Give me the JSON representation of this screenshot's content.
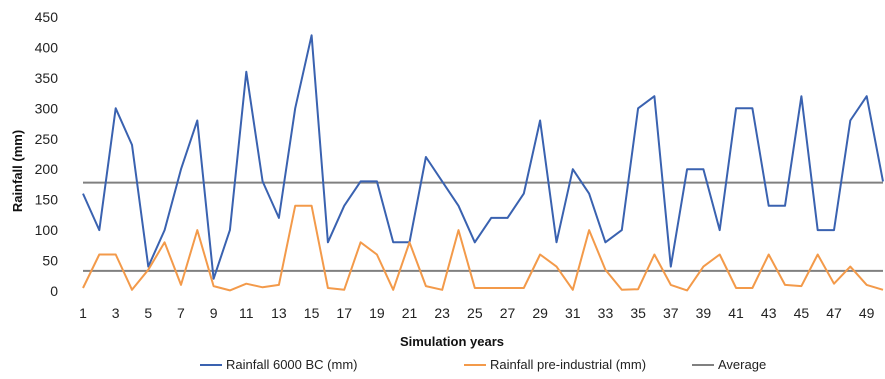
{
  "chart_data": {
    "type": "line",
    "xlabel": "Simulation years",
    "ylabel": "Rainfall (mm)",
    "ylim": [
      0,
      450
    ],
    "yticks": [
      0,
      50,
      100,
      150,
      200,
      250,
      300,
      350,
      400,
      450
    ],
    "xlim": [
      1,
      50
    ],
    "xticks": [
      1,
      3,
      5,
      7,
      9,
      11,
      13,
      15,
      17,
      19,
      21,
      23,
      25,
      27,
      29,
      31,
      33,
      35,
      37,
      39,
      41,
      43,
      45,
      47,
      49
    ],
    "grid": false,
    "legend_position": "bottom",
    "x": [
      1,
      2,
      3,
      4,
      5,
      6,
      7,
      8,
      9,
      10,
      11,
      12,
      13,
      14,
      15,
      16,
      17,
      18,
      19,
      20,
      21,
      22,
      23,
      24,
      25,
      26,
      27,
      28,
      29,
      30,
      31,
      32,
      33,
      34,
      35,
      36,
      37,
      38,
      39,
      40,
      41,
      42,
      43,
      44,
      45,
      46,
      47,
      48,
      49,
      50
    ],
    "series": [
      {
        "name": "Rainfall 6000 BC (mm)",
        "color": "#3a62b0",
        "values": [
          160,
          100,
          300,
          240,
          40,
          100,
          200,
          280,
          20,
          100,
          360,
          180,
          120,
          300,
          420,
          80,
          140,
          180,
          180,
          80,
          80,
          220,
          180,
          140,
          80,
          120,
          120,
          160,
          280,
          80,
          200,
          160,
          80,
          100,
          300,
          320,
          40,
          200,
          200,
          100,
          300,
          300,
          140,
          140,
          320,
          100,
          100,
          280,
          320,
          180
        ]
      },
      {
        "name": "Rainfall pre-industrial (mm)",
        "color": "#f39a4a",
        "values": [
          5,
          60,
          60,
          2,
          35,
          80,
          10,
          100,
          8,
          1,
          12,
          6,
          10,
          140,
          140,
          5,
          2,
          80,
          60,
          2,
          80,
          8,
          2,
          100,
          5,
          5,
          5,
          5,
          60,
          40,
          2,
          100,
          35,
          2,
          3,
          60,
          10,
          1,
          40,
          60,
          5,
          5,
          60,
          10,
          8,
          60,
          12,
          40,
          10,
          2
        ]
      },
      {
        "name": "Average",
        "color": "#808080",
        "constants": [
          178,
          33
        ]
      }
    ]
  }
}
